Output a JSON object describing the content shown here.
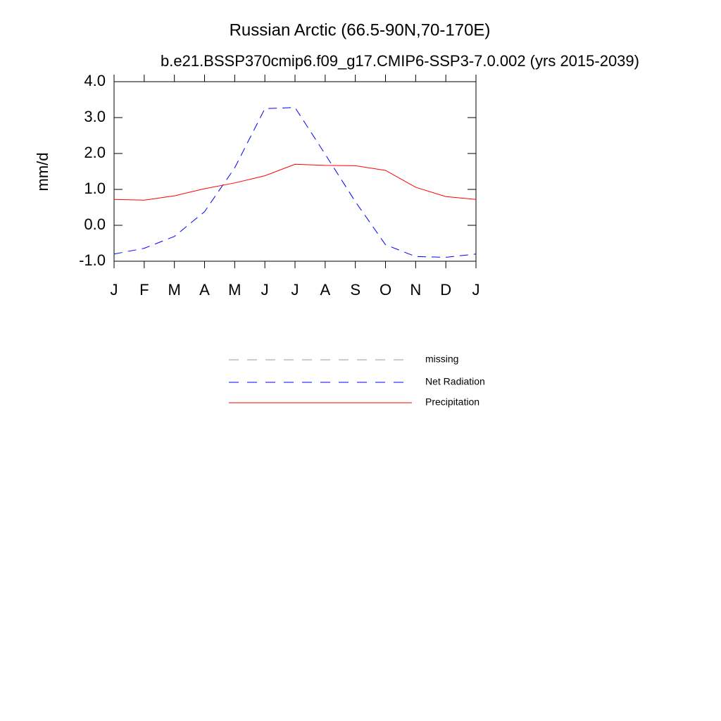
{
  "chart_data": {
    "type": "line",
    "title": "Russian Arctic (66.5-90N,70-170E)",
    "subtitle": "b.e21.BSSP370cmip6.f09_g17.CMIP6-SSP3-7.0.002 (yrs 2015-2039)",
    "y_label": "mm/d",
    "categories": [
      "J",
      "F",
      "M",
      "A",
      "M",
      "J",
      "J",
      "A",
      "S",
      "O",
      "N",
      "D",
      "J"
    ],
    "ylim": [
      -1,
      4
    ],
    "yticks": [
      {
        "value": -1,
        "label": "-1.0"
      },
      {
        "value": 0,
        "label": "0.0"
      },
      {
        "value": 1,
        "label": "1.0"
      },
      {
        "value": 2,
        "label": "2.0"
      },
      {
        "value": 3,
        "label": "3.0"
      },
      {
        "value": 4,
        "label": "4.0"
      }
    ],
    "series": [
      {
        "name": "missing",
        "color": "#999999",
        "line_style": "dashed",
        "values": [
          null,
          null,
          null,
          null,
          null,
          null,
          null,
          null,
          null,
          null,
          null,
          null,
          null
        ]
      },
      {
        "name": "Net Radiation",
        "color": "#0000ff",
        "line_style": "dashed",
        "values": [
          -0.8,
          -0.64,
          -0.31,
          0.38,
          1.6,
          3.25,
          3.28,
          1.98,
          0.66,
          -0.54,
          -0.87,
          -0.89,
          -0.8
        ]
      },
      {
        "name": "Precipitation",
        "color": "#ff0000",
        "line_style": "solid",
        "values": [
          0.72,
          0.7,
          0.82,
          1.02,
          1.18,
          1.38,
          1.7,
          1.67,
          1.66,
          1.53,
          1.06,
          0.8,
          0.72
        ]
      }
    ]
  }
}
